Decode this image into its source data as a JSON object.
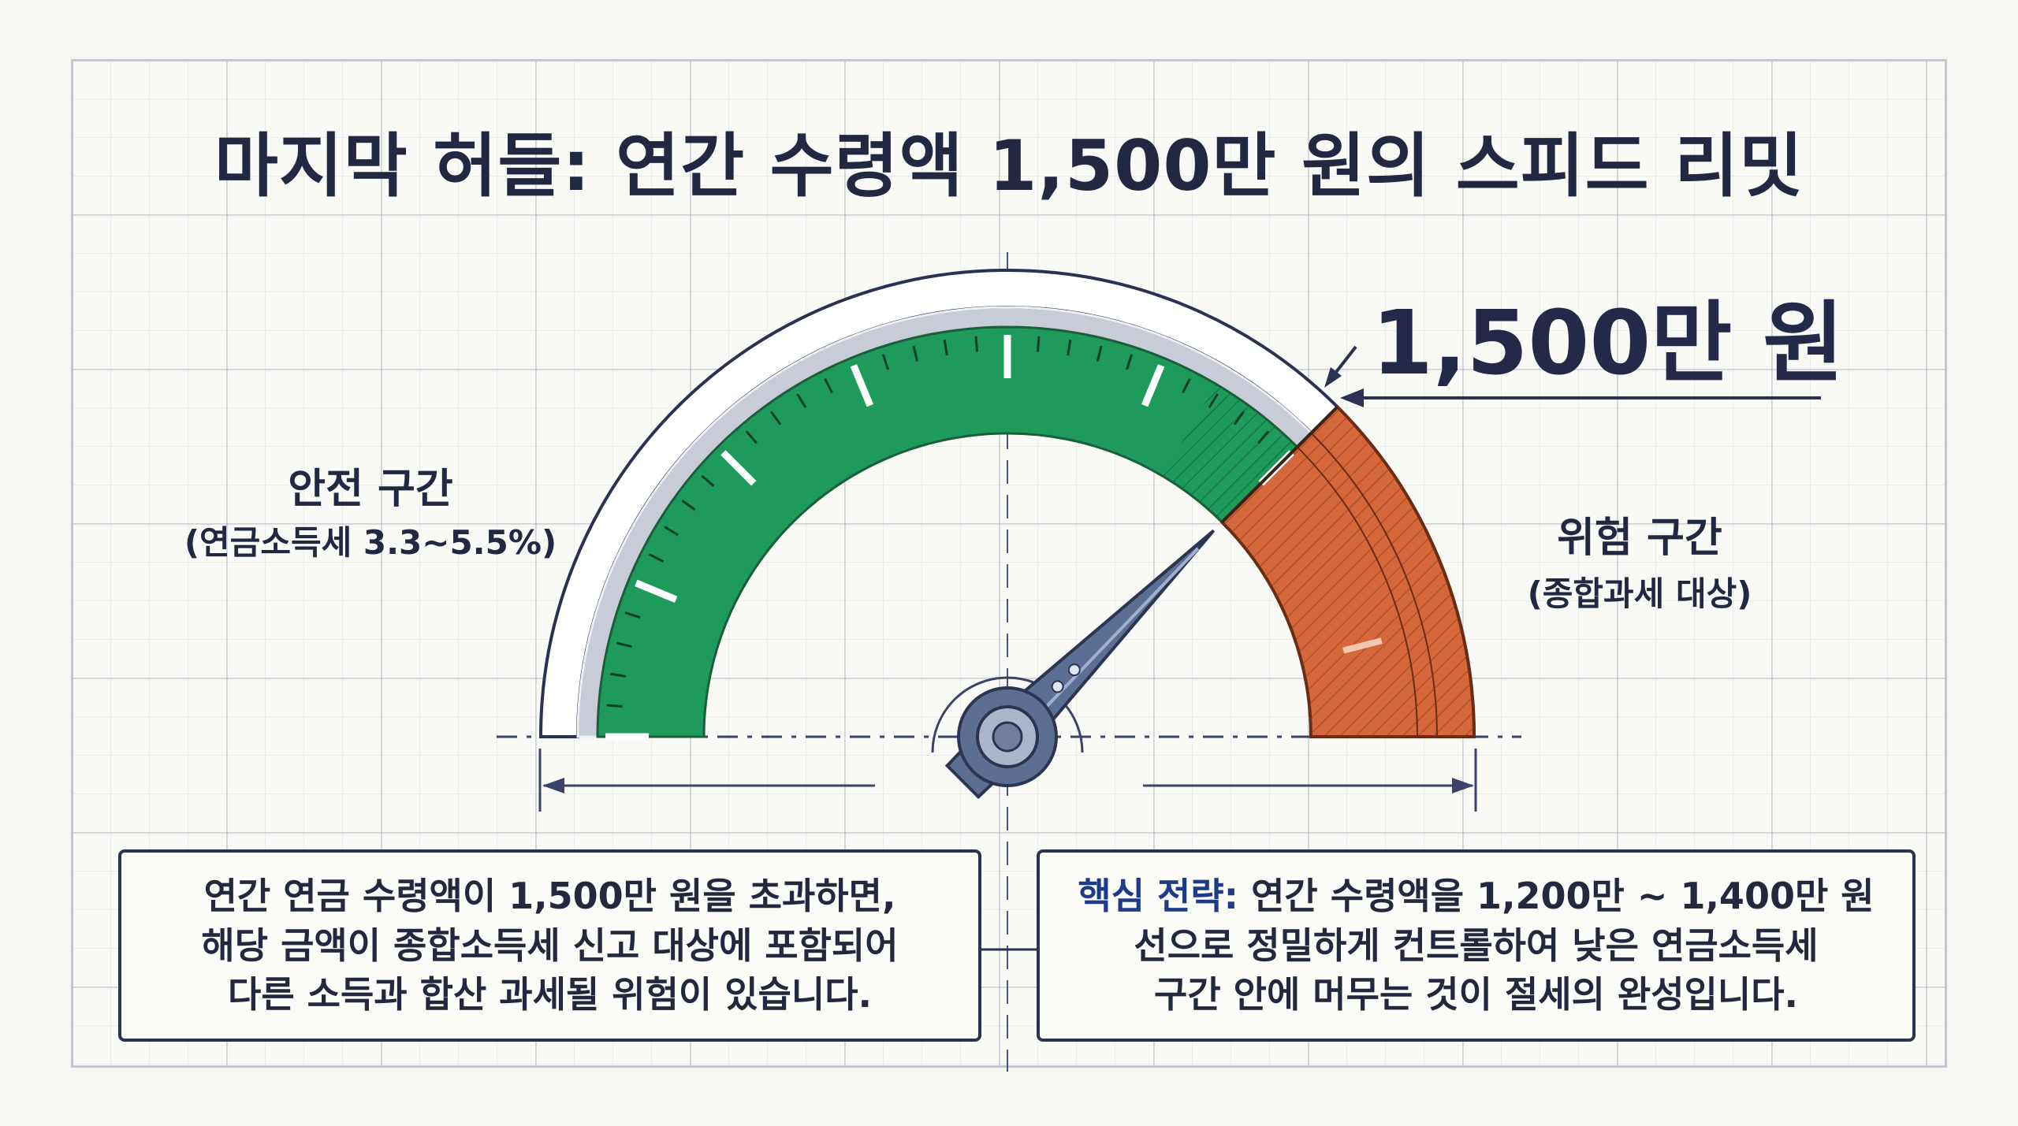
{
  "title": "마지막 허들: 연간 수령액 1,500만 원의 스피드 리밋",
  "threshold_label": "1,500만 원",
  "safe_zone": {
    "title": "안전 구간",
    "subtitle": "(연금소득세 3.3~5.5%)"
  },
  "danger_zone": {
    "title": "위험 구간",
    "subtitle": "(종합과세 대상)"
  },
  "gauge": {
    "threshold_fraction": 0.75,
    "needle_fraction": 0.75
  },
  "left_note": {
    "lines": [
      "연간 연금 수령액이 1,500만 원을 초과하면,",
      "해당 금액이 종합소득세 신고 대상에 포함되어",
      "다른 소득과 합산 과세될 위험이 있습니다."
    ]
  },
  "right_note": {
    "highlight": "핵심 전략:",
    "line1_rest": " 연간 수령액을 1,200만 ~ 1,400만 원",
    "lines": [
      "선으로 정밀하게 컨트롤하여 낮은 연금소득세",
      "구간 안에 머무는 것이 절세의 완성입니다."
    ]
  },
  "colors": {
    "safe": "#1e9a5a",
    "danger": "#d5683a",
    "needle": "#5a6f92",
    "ink": "#222842",
    "accent": "#1d3b86"
  },
  "icons": [
    "gauge-needle-icon",
    "threshold-arrow-icon"
  ]
}
